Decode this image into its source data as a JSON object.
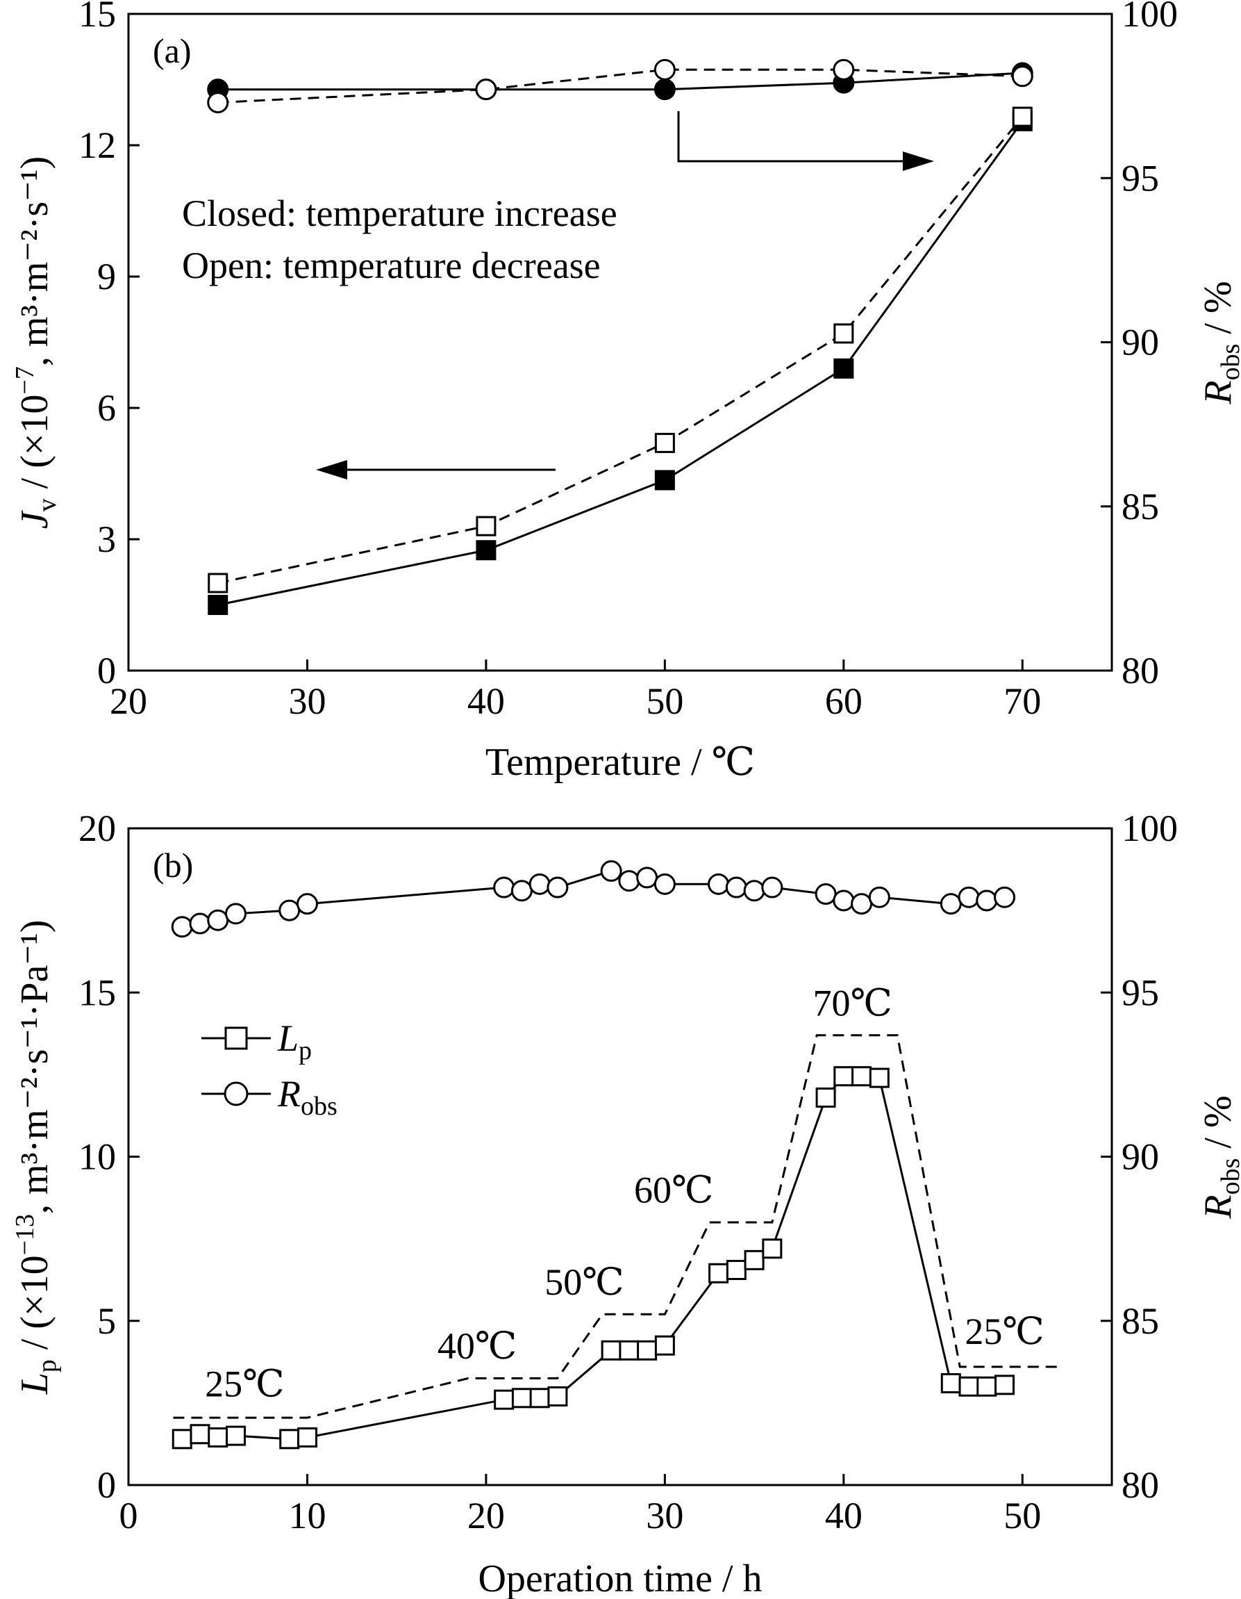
{
  "chart_data": [
    {
      "type": "line",
      "panel_label": "(a)",
      "xlabel": "Temperature / ℃",
      "ylabel_left": {
        "main": "J",
        "sub": "v",
        "rest": " / (×10",
        "exp": "−7",
        "unit": ", m³·m⁻²·s⁻¹)"
      },
      "ylabel_right": {
        "main": "R",
        "sub": "obs",
        "rest": " / %"
      },
      "xlim": [
        20,
        75
      ],
      "ylim_left": [
        0,
        15
      ],
      "ylim_right": [
        80,
        100
      ],
      "xticks": [
        20,
        30,
        40,
        50,
        60,
        70
      ],
      "yticks_left": [
        0,
        3,
        6,
        9,
        12,
        15
      ],
      "yticks_right": [
        80,
        85,
        90,
        95,
        100
      ],
      "legend_text": [
        "Closed: temperature increase",
        "Open: temperature decrease"
      ],
      "series": [
        {
          "name": "Jv increase",
          "axis": "left",
          "marker": "filled-square",
          "line": "solid",
          "x": [
            25,
            40,
            50,
            60,
            70
          ],
          "y": [
            1.5,
            2.75,
            4.35,
            6.9,
            12.55
          ]
        },
        {
          "name": "Jv decrease",
          "axis": "left",
          "marker": "open-square",
          "line": "dashed",
          "x": [
            25,
            40,
            50,
            60,
            70
          ],
          "y": [
            2.0,
            3.3,
            5.2,
            7.7,
            12.65
          ]
        },
        {
          "name": "Robs increase",
          "axis": "right",
          "marker": "filled-circle",
          "line": "solid",
          "x": [
            25,
            40,
            50,
            60,
            70
          ],
          "y": [
            97.7,
            97.7,
            97.7,
            97.9,
            98.2
          ]
        },
        {
          "name": "Robs decrease",
          "axis": "right",
          "marker": "open-circle",
          "line": "dashed",
          "x": [
            25,
            40,
            50,
            60,
            70
          ],
          "y": [
            97.3,
            97.7,
            98.3,
            98.3,
            98.1
          ]
        }
      ]
    },
    {
      "type": "line",
      "panel_label": "(b)",
      "xlabel": "Operation time / h",
      "ylabel_left": {
        "main": "L",
        "sub": "p",
        "rest": " / (×10",
        "exp": "−13",
        "unit": ", m³·m⁻²·s⁻¹·Pa⁻¹)"
      },
      "ylabel_right": {
        "main": "R",
        "sub": "obs",
        "rest": " / %"
      },
      "xlim": [
        0,
        55
      ],
      "ylim_left": [
        0,
        20
      ],
      "ylim_right": [
        80,
        100
      ],
      "xticks": [
        0,
        10,
        20,
        30,
        40,
        50
      ],
      "yticks_left": [
        0,
        5,
        10,
        15,
        20
      ],
      "yticks_right": [
        80,
        85,
        90,
        95,
        100
      ],
      "legend": [
        {
          "main": "L",
          "sub": "p",
          "marker": "open-square"
        },
        {
          "main": "R",
          "sub": "obs",
          "marker": "open-circle"
        }
      ],
      "temperature_labels": [
        {
          "text": "25℃",
          "x": 6.5,
          "y": 2.7
        },
        {
          "text": "40℃",
          "x": 19.5,
          "y": 3.85
        },
        {
          "text": "50℃",
          "x": 25.5,
          "y": 5.8
        },
        {
          "text": "60℃",
          "x": 30.5,
          "y": 8.6
        },
        {
          "text": "70℃",
          "x": 40.5,
          "y": 14.3
        },
        {
          "text": "25℃",
          "x": 49,
          "y": 4.3
        }
      ],
      "series": [
        {
          "name": "Lp",
          "axis": "left",
          "marker": "open-square",
          "line": "solid",
          "x": [
            3,
            4,
            5,
            6,
            9,
            10,
            21,
            22,
            23,
            24,
            27,
            28,
            29,
            30,
            33,
            34,
            35,
            36,
            39,
            40,
            41,
            42,
            46,
            47,
            48,
            49
          ],
          "y": [
            1.4,
            1.55,
            1.45,
            1.5,
            1.4,
            1.45,
            2.6,
            2.65,
            2.65,
            2.7,
            4.1,
            4.1,
            4.1,
            4.25,
            6.45,
            6.55,
            6.85,
            7.2,
            11.8,
            12.45,
            12.45,
            12.4,
            3.1,
            3.0,
            3.0,
            3.05
          ]
        },
        {
          "name": "reference",
          "axis": "left",
          "marker": "none",
          "line": "dashed",
          "x": [
            2.5,
            10,
            19,
            24,
            26.5,
            30,
            32.5,
            36,
            38.5,
            43,
            46.5,
            52
          ],
          "y": [
            2.05,
            2.05,
            3.25,
            3.25,
            5.2,
            5.2,
            8.0,
            8.0,
            13.7,
            13.7,
            3.6,
            3.6
          ]
        },
        {
          "name": "Robs",
          "axis": "right",
          "marker": "open-circle",
          "line": "solid",
          "x": [
            3,
            4,
            5,
            6,
            9,
            10,
            21,
            22,
            23,
            24,
            27,
            28,
            29,
            30,
            33,
            34,
            35,
            36,
            39,
            40,
            41,
            42,
            46,
            47,
            48,
            49
          ],
          "y": [
            97.0,
            97.1,
            97.2,
            97.4,
            97.5,
            97.7,
            98.2,
            98.1,
            98.3,
            98.2,
            98.7,
            98.4,
            98.5,
            98.3,
            98.3,
            98.2,
            98.1,
            98.2,
            98.0,
            97.8,
            97.7,
            97.9,
            97.7,
            97.9,
            97.8,
            97.9
          ]
        }
      ]
    }
  ]
}
